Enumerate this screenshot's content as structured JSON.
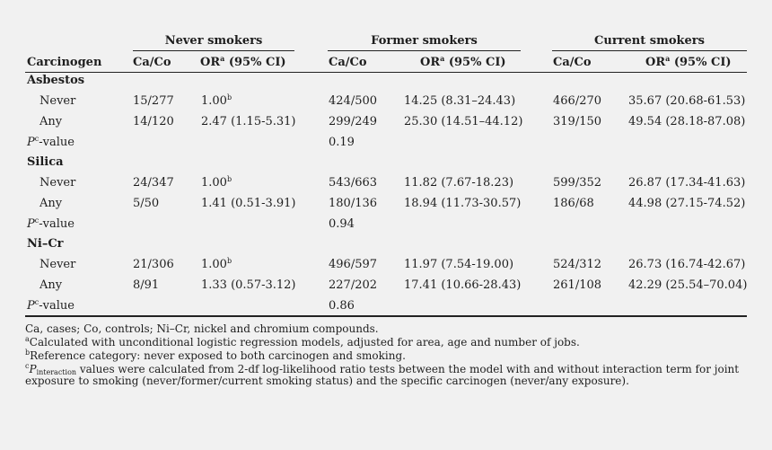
{
  "groups": [
    "Never smokers",
    "Former smokers",
    "Current smokers"
  ],
  "col_headers": {
    "carcinogen": "Carcinogen",
    "caco": "Ca/Co",
    "or_prefix": "OR",
    "or_sup": "a",
    "or_suffix": " (95% CI)"
  },
  "pvalue_label": {
    "prefix": "P",
    "sup": "c",
    "suffix": "-value"
  },
  "sections": [
    {
      "name": "Asbestos",
      "rows": [
        {
          "label": "Never",
          "n_caco": "15/277",
          "n_or": "1.00",
          "n_or_sup": "b",
          "f_caco": "424/500",
          "f_or": "14.25 (8.31–24.43)",
          "c_caco": "466/270",
          "c_or": "35.67 (20.68-61.53)"
        },
        {
          "label": "Any",
          "n_caco": "14/120",
          "n_or": "2.47 (1.15-5.31)",
          "n_or_sup": "",
          "f_caco": "299/249",
          "f_or": "25.30 (14.51–44.12)",
          "c_caco": "319/150",
          "c_or": "49.54 (28.18-87.08)"
        }
      ],
      "pvalue": "0.19"
    },
    {
      "name": "Silica",
      "rows": [
        {
          "label": "Never",
          "n_caco": "24/347",
          "n_or": "1.00",
          "n_or_sup": "b",
          "f_caco": "543/663",
          "f_or": "11.82 (7.67-18.23)",
          "c_caco": "599/352",
          "c_or": "26.87 (17.34-41.63)"
        },
        {
          "label": "Any",
          "n_caco": "5/50",
          "n_or": "1.41 (0.51-3.91)",
          "n_or_sup": "",
          "f_caco": "180/136",
          "f_or": "18.94 (11.73-30.57)",
          "c_caco": "186/68",
          "c_or": "44.98 (27.15-74.52)"
        }
      ],
      "pvalue": "0.94"
    },
    {
      "name": "Ni–Cr",
      "rows": [
        {
          "label": "Never",
          "n_caco": "21/306",
          "n_or": "1.00",
          "n_or_sup": "b",
          "f_caco": "496/597",
          "f_or": "11.97 (7.54-19.00)",
          "c_caco": "524/312",
          "c_or": "26.73 (16.74-42.67)"
        },
        {
          "label": "Any",
          "n_caco": "8/91",
          "n_or": "1.33 (0.57-3.12)",
          "n_or_sup": "",
          "f_caco": "227/202",
          "f_or": "17.41 (10.66-28.43)",
          "c_caco": "261/108",
          "c_or": "42.29 (25.54–70.04)"
        }
      ],
      "pvalue": "0.86"
    }
  ],
  "footnotes": {
    "abbrev": "Ca, cases; Co, controls; Ni–Cr, nickel and chromium compounds.",
    "a_mark": "a",
    "a_text": "Calculated with unconditional logistic regression models, adjusted for area, age and number of jobs.",
    "b_mark": "b",
    "b_text": "Reference category: never exposed to both carcinogen and smoking.",
    "c_mark": "c",
    "c_p": "P",
    "c_sub": "interaction",
    "c_text1": " values were calculated from 2-df log-likelihood ratio tests between the model with and without interaction term for joint",
    "c_text2": "exposure to smoking (never/former/current smoking status) and the specific carcinogen (never/any exposure)."
  }
}
